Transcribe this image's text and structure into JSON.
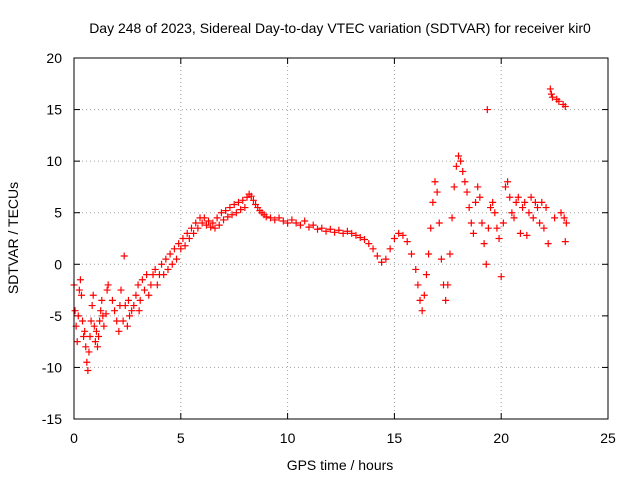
{
  "chart_data": {
    "type": "scatter",
    "title": "Day 248 of 2023, Sidereal Day-to-day VTEC variation (SDTVAR) for receiver kir0",
    "xlabel": "GPS time / hours",
    "ylabel": "SDTVAR / TECUs",
    "xlim": [
      0,
      25
    ],
    "ylim": [
      -15,
      20
    ],
    "xticks": [
      0,
      5,
      10,
      15,
      20,
      25
    ],
    "yticks": [
      -15,
      -10,
      -5,
      0,
      5,
      10,
      15,
      20
    ],
    "grid": true,
    "marker": "+",
    "color": "#ff0000",
    "series": [
      {
        "name": "SDTVAR",
        "points": [
          [
            0.0,
            -2.0
          ],
          [
            0.05,
            -4.5
          ],
          [
            0.1,
            -6.0
          ],
          [
            0.15,
            -7.5
          ],
          [
            0.2,
            -5.0
          ],
          [
            0.25,
            -2.5
          ],
          [
            0.3,
            -1.5
          ],
          [
            0.35,
            -3.0
          ],
          [
            0.4,
            -5.5
          ],
          [
            0.45,
            -7.0
          ],
          [
            0.5,
            -6.5
          ],
          [
            0.55,
            -8.0
          ],
          [
            0.6,
            -9.5
          ],
          [
            0.65,
            -10.3
          ],
          [
            0.7,
            -8.5
          ],
          [
            0.75,
            -7.0
          ],
          [
            0.8,
            -5.5
          ],
          [
            0.85,
            -4.0
          ],
          [
            0.9,
            -3.0
          ],
          [
            0.95,
            -6.0
          ],
          [
            1.0,
            -7.5
          ],
          [
            1.05,
            -6.5
          ],
          [
            1.1,
            -8.0
          ],
          [
            1.15,
            -7.0
          ],
          [
            1.2,
            -5.5
          ],
          [
            1.25,
            -4.5
          ],
          [
            1.3,
            -3.5
          ],
          [
            1.35,
            -5.0
          ],
          [
            1.4,
            -6.0
          ],
          [
            1.5,
            -4.8
          ],
          [
            1.55,
            -2.5
          ],
          [
            1.6,
            -2.0
          ],
          [
            1.8,
            -3.5
          ],
          [
            1.9,
            -4.5
          ],
          [
            2.0,
            -5.5
          ],
          [
            2.1,
            -6.5
          ],
          [
            2.15,
            -4.0
          ],
          [
            2.2,
            -2.5
          ],
          [
            2.3,
            -5.5
          ],
          [
            2.35,
            0.8
          ],
          [
            2.4,
            -4.0
          ],
          [
            2.5,
            -6.0
          ],
          [
            2.55,
            -3.5
          ],
          [
            2.6,
            -5.0
          ],
          [
            2.7,
            -4.5
          ],
          [
            2.8,
            -4.0
          ],
          [
            2.9,
            -3.0
          ],
          [
            3.0,
            -2.0
          ],
          [
            3.05,
            -4.5
          ],
          [
            3.1,
            -3.5
          ],
          [
            3.2,
            -1.5
          ],
          [
            3.3,
            -2.5
          ],
          [
            3.4,
            -1.0
          ],
          [
            3.5,
            -3.0
          ],
          [
            3.6,
            -2.0
          ],
          [
            3.7,
            -1.0
          ],
          [
            3.8,
            -0.5
          ],
          [
            3.9,
            -2.0
          ],
          [
            4.0,
            -1.0
          ],
          [
            4.1,
            0.0
          ],
          [
            4.2,
            -1.0
          ],
          [
            4.3,
            0.5
          ],
          [
            4.4,
            -0.5
          ],
          [
            4.5,
            1.0
          ],
          [
            4.6,
            0.0
          ],
          [
            4.7,
            1.5
          ],
          [
            4.8,
            0.5
          ],
          [
            4.9,
            2.0
          ],
          [
            5.0,
            1.5
          ],
          [
            5.1,
            2.5
          ],
          [
            5.2,
            1.8
          ],
          [
            5.3,
            3.0
          ],
          [
            5.4,
            2.5
          ],
          [
            5.5,
            3.5
          ],
          [
            5.6,
            3.0
          ],
          [
            5.7,
            4.0
          ],
          [
            5.8,
            3.5
          ],
          [
            5.9,
            4.5
          ],
          [
            6.0,
            4.0
          ],
          [
            6.1,
            4.5
          ],
          [
            6.2,
            3.8
          ],
          [
            6.3,
            4.2
          ],
          [
            6.4,
            3.6
          ],
          [
            6.5,
            4.0
          ],
          [
            6.6,
            3.5
          ],
          [
            6.7,
            4.5
          ],
          [
            6.8,
            3.8
          ],
          [
            6.9,
            5.0
          ],
          [
            7.0,
            4.3
          ],
          [
            7.1,
            5.2
          ],
          [
            7.2,
            4.6
          ],
          [
            7.3,
            5.5
          ],
          [
            7.4,
            4.8
          ],
          [
            7.5,
            5.8
          ],
          [
            7.6,
            5.0
          ],
          [
            7.7,
            6.0
          ],
          [
            7.8,
            5.3
          ],
          [
            7.9,
            6.2
          ],
          [
            8.0,
            5.5
          ],
          [
            8.1,
            6.5
          ],
          [
            8.2,
            6.8
          ],
          [
            8.3,
            6.6
          ],
          [
            8.4,
            6.2
          ],
          [
            8.5,
            5.8
          ],
          [
            8.6,
            5.5
          ],
          [
            8.7,
            5.2
          ],
          [
            8.8,
            5.0
          ],
          [
            8.9,
            4.8
          ],
          [
            9.0,
            4.6
          ],
          [
            9.2,
            4.5
          ],
          [
            9.4,
            4.3
          ],
          [
            9.6,
            4.5
          ],
          [
            9.8,
            4.2
          ],
          [
            10.0,
            4.0
          ],
          [
            10.2,
            4.3
          ],
          [
            10.4,
            4.0
          ],
          [
            10.6,
            3.8
          ],
          [
            10.8,
            4.2
          ],
          [
            11.0,
            3.6
          ],
          [
            11.2,
            3.8
          ],
          [
            11.4,
            3.4
          ],
          [
            11.6,
            3.5
          ],
          [
            11.8,
            3.2
          ],
          [
            12.0,
            3.4
          ],
          [
            12.2,
            3.1
          ],
          [
            12.4,
            3.3
          ],
          [
            12.6,
            3.0
          ],
          [
            12.8,
            3.2
          ],
          [
            13.0,
            3.0
          ],
          [
            13.2,
            2.8
          ],
          [
            13.4,
            2.6
          ],
          [
            13.6,
            2.4
          ],
          [
            13.8,
            2.0
          ],
          [
            14.0,
            1.5
          ],
          [
            14.2,
            0.8
          ],
          [
            14.4,
            0.2
          ],
          [
            14.6,
            0.5
          ],
          [
            14.8,
            1.5
          ],
          [
            15.0,
            2.5
          ],
          [
            15.2,
            3.0
          ],
          [
            15.4,
            2.8
          ],
          [
            15.6,
            2.2
          ],
          [
            15.8,
            1.0
          ],
          [
            16.0,
            -0.5
          ],
          [
            16.1,
            -2.0
          ],
          [
            16.2,
            -3.5
          ],
          [
            16.3,
            -4.5
          ],
          [
            16.4,
            -3.0
          ],
          [
            16.5,
            -1.0
          ],
          [
            16.6,
            1.0
          ],
          [
            16.7,
            3.5
          ],
          [
            16.8,
            6.0
          ],
          [
            16.9,
            8.0
          ],
          [
            17.0,
            7.0
          ],
          [
            17.1,
            4.0
          ],
          [
            17.2,
            0.5
          ],
          [
            17.3,
            -2.0
          ],
          [
            17.4,
            -3.5
          ],
          [
            17.5,
            -2.0
          ],
          [
            17.6,
            1.0
          ],
          [
            17.7,
            4.5
          ],
          [
            17.8,
            7.5
          ],
          [
            17.9,
            9.5
          ],
          [
            18.0,
            10.5
          ],
          [
            18.1,
            10.0
          ],
          [
            18.2,
            9.0
          ],
          [
            18.3,
            8.0
          ],
          [
            18.4,
            7.0
          ],
          [
            18.5,
            5.5
          ],
          [
            18.6,
            4.0
          ],
          [
            18.7,
            3.0
          ],
          [
            18.8,
            6.0
          ],
          [
            18.9,
            7.5
          ],
          [
            19.0,
            6.5
          ],
          [
            19.1,
            4.0
          ],
          [
            19.2,
            2.0
          ],
          [
            19.3,
            0.0
          ],
          [
            19.35,
            15.0
          ],
          [
            19.4,
            3.5
          ],
          [
            19.5,
            5.5
          ],
          [
            19.6,
            6.0
          ],
          [
            19.7,
            5.0
          ],
          [
            19.8,
            3.5
          ],
          [
            19.9,
            2.5
          ],
          [
            20.0,
            -1.2
          ],
          [
            20.1,
            4.0
          ],
          [
            20.2,
            7.5
          ],
          [
            20.3,
            8.0
          ],
          [
            20.4,
            6.5
          ],
          [
            20.5,
            5.0
          ],
          [
            20.6,
            4.5
          ],
          [
            20.7,
            6.0
          ],
          [
            20.8,
            6.5
          ],
          [
            20.9,
            3.0
          ],
          [
            21.0,
            5.5
          ],
          [
            21.1,
            6.0
          ],
          [
            21.2,
            2.8
          ],
          [
            21.3,
            5.0
          ],
          [
            21.4,
            6.5
          ],
          [
            21.5,
            4.5
          ],
          [
            21.6,
            6.0
          ],
          [
            21.7,
            5.5
          ],
          [
            21.8,
            4.0
          ],
          [
            21.9,
            6.0
          ],
          [
            22.0,
            3.5
          ],
          [
            22.1,
            5.5
          ],
          [
            22.2,
            2.0
          ],
          [
            22.3,
            17.0
          ],
          [
            22.35,
            16.5
          ],
          [
            22.4,
            16.2
          ],
          [
            22.5,
            4.5
          ],
          [
            22.6,
            16.0
          ],
          [
            22.7,
            15.8
          ],
          [
            22.8,
            5.0
          ],
          [
            22.9,
            15.5
          ],
          [
            22.95,
            4.5
          ],
          [
            23.0,
            15.3
          ],
          [
            23.0,
            2.2
          ],
          [
            23.05,
            4.0
          ]
        ]
      }
    ]
  }
}
